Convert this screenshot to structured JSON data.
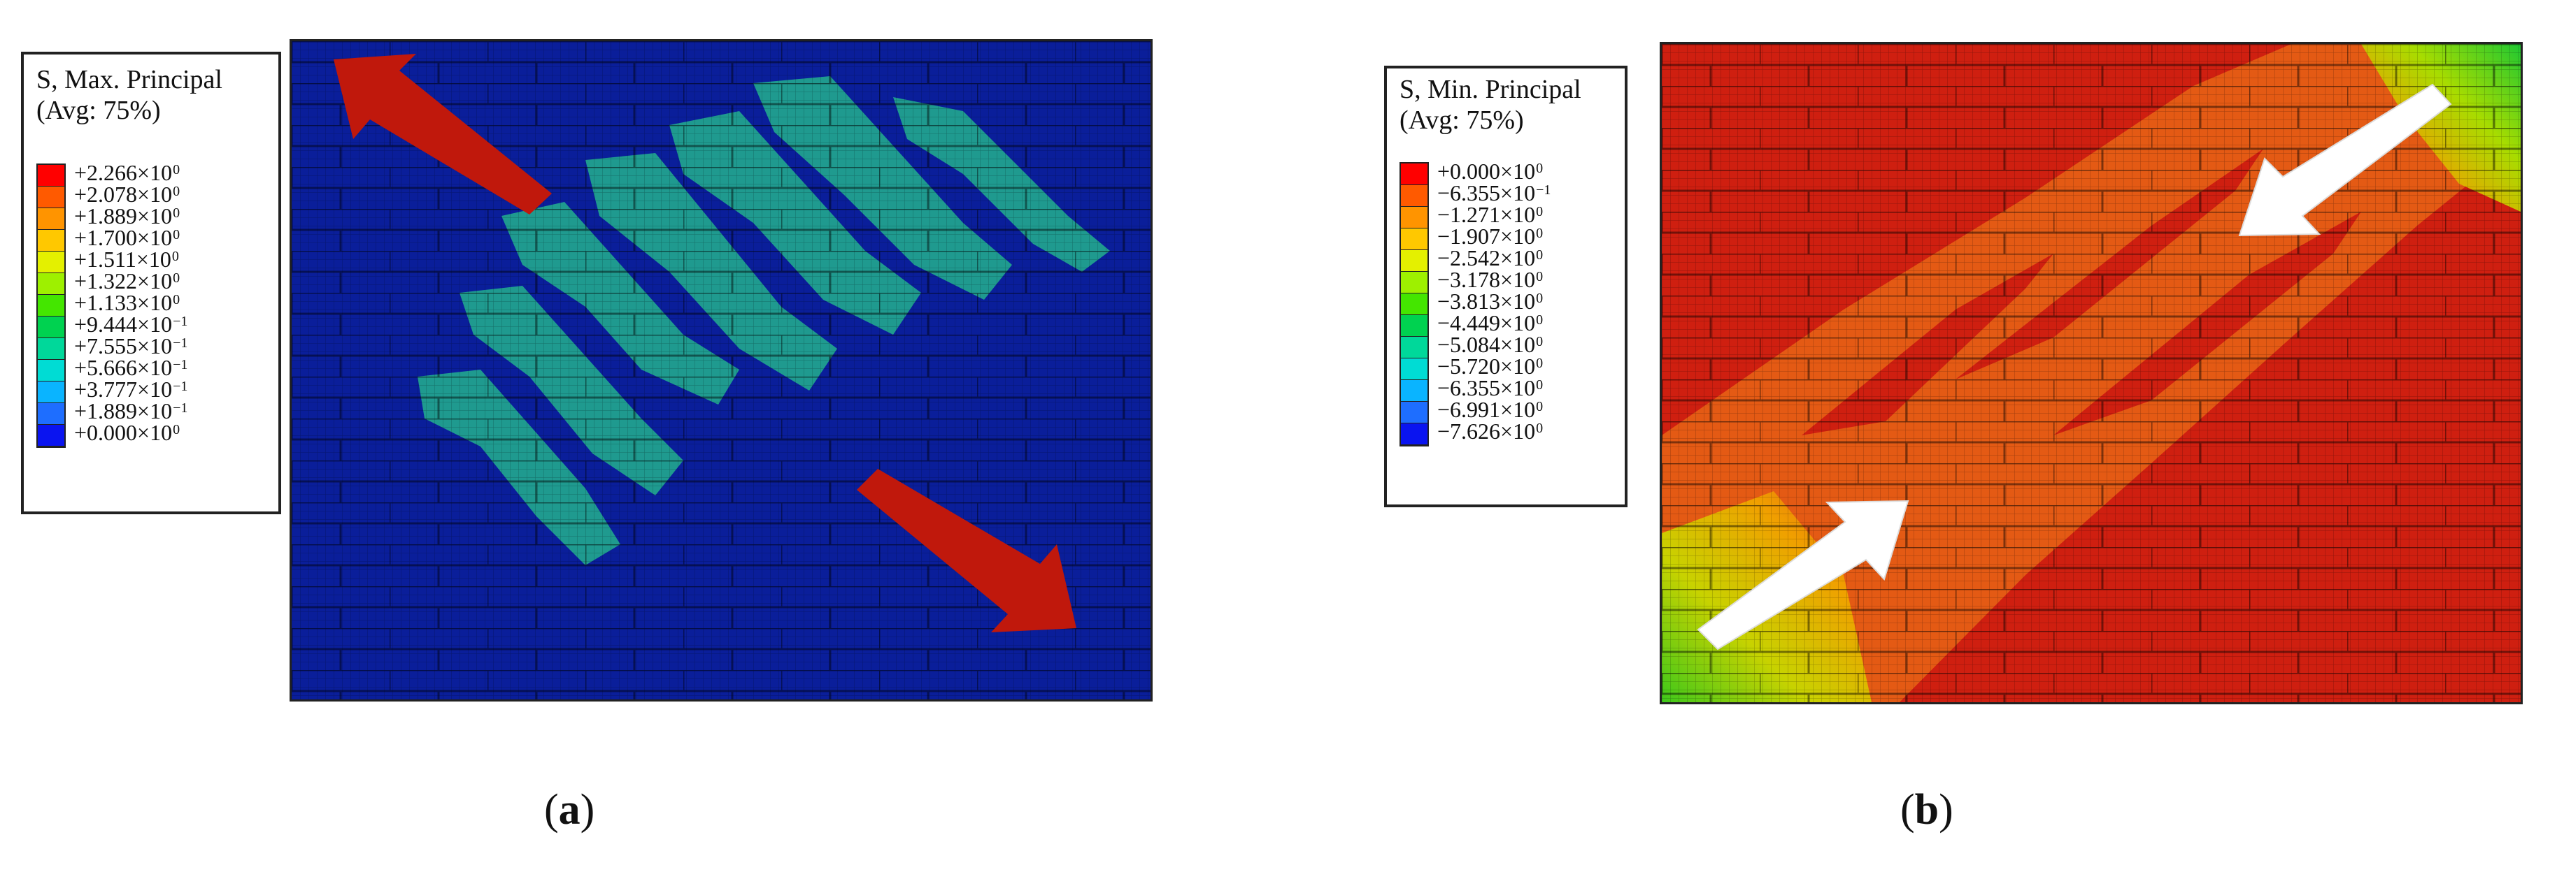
{
  "panels": [
    {
      "id": "a",
      "caption": {
        "open": "(",
        "letter": "a",
        "close": ")"
      },
      "legend": {
        "title_line1": "S, Max. Principal",
        "title_line2": "(Avg: 75%)",
        "entries": [
          {
            "mantissa": "+2.266×10",
            "exp": "0"
          },
          {
            "mantissa": "+2.078×10",
            "exp": "0"
          },
          {
            "mantissa": "+1.889×10",
            "exp": "0"
          },
          {
            "mantissa": "+1.700×10",
            "exp": "0"
          },
          {
            "mantissa": "+1.511×10",
            "exp": "0"
          },
          {
            "mantissa": "+1.322×10",
            "exp": "0"
          },
          {
            "mantissa": "+1.133×10",
            "exp": "0"
          },
          {
            "mantissa": "+9.444×10",
            "exp": "−1"
          },
          {
            "mantissa": "+7.555×10",
            "exp": "−1"
          },
          {
            "mantissa": "+5.666×10",
            "exp": "−1"
          },
          {
            "mantissa": "+3.777×10",
            "exp": "−1"
          },
          {
            "mantissa": "+1.889×10",
            "exp": "−1"
          },
          {
            "mantissa": "+0.000×10",
            "exp": "0"
          }
        ],
        "colors": [
          "#ff0000",
          "#ff5a00",
          "#ff9400",
          "#ffc800",
          "#e4f000",
          "#9ef000",
          "#44e600",
          "#00d250",
          "#00d89a",
          "#00dcd4",
          "#0ab4ff",
          "#1e6eff",
          "#0a14f0"
        ]
      },
      "contour": {
        "background_color": "#0a1e9a",
        "band_color": "#1f9a8f",
        "arrow_color": "#c0180c",
        "arrow_direction": "diagonal-tension-outward"
      }
    },
    {
      "id": "b",
      "caption": {
        "open": "(",
        "letter": "b",
        "close": ")"
      },
      "legend": {
        "title_line1": "S, Min. Principal",
        "title_line2": "(Avg: 75%)",
        "entries": [
          {
            "mantissa": "+0.000×10",
            "exp": "0"
          },
          {
            "mantissa": "−6.355×10",
            "exp": "−1"
          },
          {
            "mantissa": "−1.271×10",
            "exp": "0"
          },
          {
            "mantissa": "−1.907×10",
            "exp": "0"
          },
          {
            "mantissa": "−2.542×10",
            "exp": "0"
          },
          {
            "mantissa": "−3.178×10",
            "exp": "0"
          },
          {
            "mantissa": "−3.813×10",
            "exp": "0"
          },
          {
            "mantissa": "−4.449×10",
            "exp": "0"
          },
          {
            "mantissa": "−5.084×10",
            "exp": "0"
          },
          {
            "mantissa": "−5.720×10",
            "exp": "0"
          },
          {
            "mantissa": "−6.355×10",
            "exp": "0"
          },
          {
            "mantissa": "−6.991×10",
            "exp": "0"
          },
          {
            "mantissa": "−7.626×10",
            "exp": "0"
          }
        ],
        "colors": [
          "#ff0000",
          "#ff5a00",
          "#ff9400",
          "#ffc800",
          "#e4f000",
          "#9ef000",
          "#44e600",
          "#00d250",
          "#00d89a",
          "#00dcd4",
          "#0ab4ff",
          "#1e6eff",
          "#0a14f0"
        ]
      },
      "contour": {
        "background_color": "#cf1f10",
        "band_color": "#e45a14",
        "arrow_color": "#ffffff",
        "arrow_direction": "diagonal-compression-inward"
      }
    }
  ]
}
